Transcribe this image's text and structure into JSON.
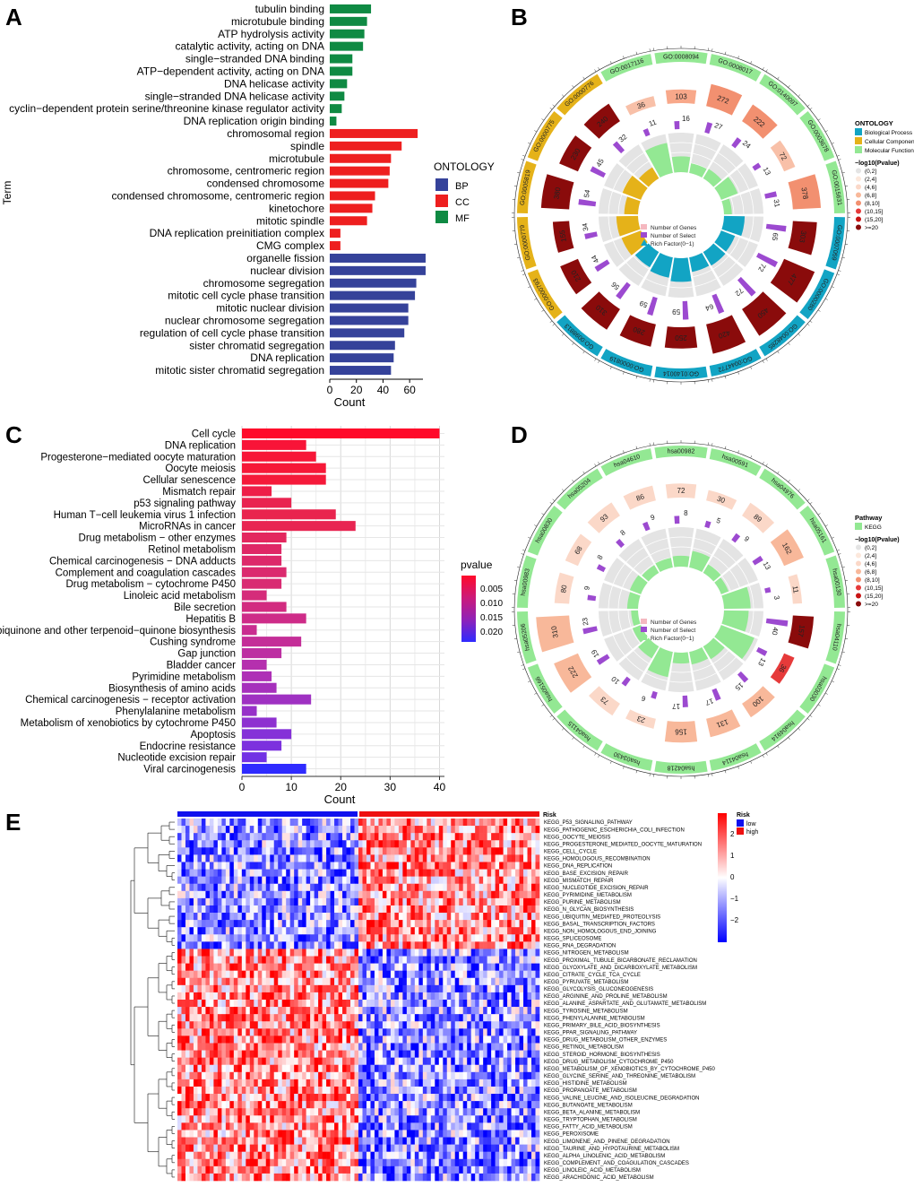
{
  "panels": {
    "a": "A",
    "b": "B",
    "c": "C",
    "d": "D",
    "e": "E"
  },
  "chart_data": [
    {
      "id": "A",
      "type": "bar",
      "orientation": "horizontal",
      "ylabel": "Term",
      "xlabel": "Count",
      "xlim": [
        0,
        70
      ],
      "xticks": [
        0,
        20,
        40,
        60
      ],
      "legend": {
        "title": "ONTOLOGY",
        "placement": "right",
        "items": [
          {
            "name": "BP",
            "color": "#35429a"
          },
          {
            "name": "CC",
            "color": "#ee1f1f"
          },
          {
            "name": "MF",
            "color": "#0f8a43"
          }
        ]
      },
      "categories": [
        "tubulin binding",
        "microtubule binding",
        "ATP hydrolysis activity",
        "catalytic activity, acting on DNA",
        "single−stranded DNA binding",
        "ATP−dependent activity, acting on DNA",
        "DNA helicase activity",
        "single−stranded DNA helicase activity",
        "cyclin−dependent protein serine/threonine kinase regulator activity",
        "DNA replication origin binding",
        "chromosomal region",
        "spindle",
        "microtubule",
        "chromosome, centromeric region",
        "condensed chromosome",
        "condensed chromosome, centromeric region",
        "kinetochore",
        "mitotic spindle",
        "DNA replication preinitiation complex",
        "CMG complex",
        "organelle fission",
        "nuclear division",
        "chromosome segregation",
        "mitotic cell cycle phase transition",
        "mitotic nuclear division",
        "nuclear chromosome segregation",
        "regulation of cell cycle phase transition",
        "sister chromatid segregation",
        "DNA replication",
        "mitotic sister chromatid segregation"
      ],
      "values": [
        31,
        28,
        26,
        25,
        17,
        17,
        13,
        11,
        9,
        5,
        66,
        54,
        46,
        45,
        44,
        34,
        32,
        28,
        8,
        8,
        72,
        72,
        65,
        64,
        59,
        59,
        56,
        49,
        48,
        46
      ],
      "groups": [
        "MF",
        "MF",
        "MF",
        "MF",
        "MF",
        "MF",
        "MF",
        "MF",
        "MF",
        "MF",
        "CC",
        "CC",
        "CC",
        "CC",
        "CC",
        "CC",
        "CC",
        "CC",
        "CC",
        "CC",
        "BP",
        "BP",
        "BP",
        "BP",
        "BP",
        "BP",
        "BP",
        "BP",
        "BP",
        "BP"
      ]
    },
    {
      "id": "C",
      "type": "bar",
      "orientation": "horizontal",
      "xlabel": "Count",
      "xlim": [
        0,
        41
      ],
      "xticks": [
        0,
        10,
        20,
        30,
        40
      ],
      "legend": {
        "title": "pvalue",
        "placement": "right",
        "ticks": [
          "0.005",
          "0.010",
          "0.015",
          "0.020"
        ],
        "gradient": [
          "#ff0a2a",
          "#cc1a7a",
          "#8f22b8",
          "#2f2bff"
        ]
      },
      "categories": [
        "Cell cycle",
        "DNA replication",
        "Progesterone−mediated oocyte maturation",
        "Oocyte meiosis",
        "Cellular senescence",
        "Mismatch repair",
        "p53 signaling pathway",
        "Human T−cell leukemia virus 1 infection",
        "MicroRNAs in cancer",
        "Drug metabolism − other enzymes",
        "Retinol metabolism",
        "Chemical carcinogenesis − DNA adducts",
        "Complement and coagulation cascades",
        "Drug metabolism − cytochrome P450",
        "Linoleic acid metabolism",
        "Bile secretion",
        "Hepatitis B",
        "Ubiquinone and other terpenoid−quinone biosynthesis",
        "Cushing syndrome",
        "Gap junction",
        "Bladder cancer",
        "Pyrimidine metabolism",
        "Biosynthesis of amino acids",
        "Chemical carcinogenesis − receptor activation",
        "Phenylalanine metabolism",
        "Metabolism of xenobiotics by cytochrome P450",
        "Apoptosis",
        "Endocrine resistance",
        "Nucleotide excision repair",
        "Viral carcinogenesis"
      ],
      "values": [
        40,
        13,
        15,
        17,
        17,
        6,
        10,
        19,
        23,
        9,
        8,
        8,
        9,
        8,
        5,
        9,
        13,
        3,
        12,
        8,
        5,
        6,
        7,
        14,
        3,
        7,
        10,
        8,
        5,
        13
      ],
      "colors": [
        "#ff0a2a",
        "#f81438",
        "#f71638",
        "#f61838",
        "#f51a3a",
        "#ee1e48",
        "#e92350",
        "#e9244e",
        "#e82552",
        "#e3275e",
        "#df2866",
        "#dd296a",
        "#db2a6e",
        "#d92b72",
        "#d52c7a",
        "#d22c80",
        "#ce2c88",
        "#c92d90",
        "#c42e98",
        "#bd2fa2",
        "#b52fae",
        "#ae30b6",
        "#a630bc",
        "#9f31c2",
        "#9731c8",
        "#8e31d0",
        "#8531d8",
        "#7c31de",
        "#7232e4",
        "#2f2bff"
      ]
    },
    {
      "id": "B",
      "type": "circular",
      "legend": {
        "title": "ONTOLOGY",
        "items": [
          {
            "name": "Biological Process",
            "color": "#12a4c4"
          },
          {
            "name": "Cellular Component",
            "color": "#e5b219"
          },
          {
            "name": "Molecular Function",
            "color": "#93e893"
          }
        ],
        "scale_title": "−log10(Pvalue)",
        "scale": [
          "(0,2]",
          "(2,4]",
          "(4,6]",
          "(6,8]",
          "(8,10]",
          "(10,15]",
          "(15,20]",
          ">=20"
        ],
        "inner": [
          "Number of Genes",
          "Number of Select",
          "Rich Factor(0−1)"
        ]
      },
      "terms": [
        {
          "id": "GO:0008094",
          "n": 103,
          "sel": 16,
          "ont": "MF",
          "rich": 0.16,
          "p": "#f8a88a"
        },
        {
          "id": "GO:0008017",
          "n": 272,
          "sel": 27,
          "ont": "MF",
          "rich": 0.1,
          "p": "#f29070"
        },
        {
          "id": "GO:0140097",
          "n": 222,
          "sel": 24,
          "ont": "MF",
          "rich": 0.11,
          "p": "#f29070"
        },
        {
          "id": "GO:0003678",
          "n": 72,
          "sel": 13,
          "ont": "MF",
          "rich": 0.18,
          "p": "#f8c0a8"
        },
        {
          "id": "GO:0015631",
          "n": 378,
          "sel": 31,
          "ont": "MF",
          "rich": 0.08,
          "p": "#f29070"
        },
        {
          "id": "GO:0007059",
          "n": 303,
          "sel": 65,
          "ont": "BP",
          "rich": 0.21,
          "p": "#8a0b0b"
        },
        {
          "id": "GO:0000280",
          "n": 477,
          "sel": 72,
          "ont": "BP",
          "rich": 0.15,
          "p": "#8a0b0b"
        },
        {
          "id": "GO:0048285",
          "n": 450,
          "sel": 72,
          "ont": "BP",
          "rich": 0.16,
          "p": "#8a0b0b"
        },
        {
          "id": "GO:0044772",
          "n": 420,
          "sel": 64,
          "ont": "BP",
          "rich": 0.15,
          "p": "#8a0b0b"
        },
        {
          "id": "GO:0140014",
          "n": 250,
          "sel": 59,
          "ont": "BP",
          "rich": 0.24,
          "p": "#8a0b0b"
        },
        {
          "id": "GO:0000819",
          "n": 280,
          "sel": 59,
          "ont": "BP",
          "rich": 0.21,
          "p": "#8a0b0b"
        },
        {
          "id": "GO:0098813",
          "n": 310,
          "sel": 56,
          "ont": "BP",
          "rich": 0.18,
          "p": "#8a0b0b"
        },
        {
          "id": "GO:0000793",
          "n": 210,
          "sel": 44,
          "ont": "CC",
          "rich": 0.21,
          "p": "#8a0b0b"
        },
        {
          "id": "GO:0000779",
          "n": 155,
          "sel": 34,
          "ont": "CC",
          "rich": 0.22,
          "p": "#8a0b0b"
        },
        {
          "id": "GO:0005819",
          "n": 380,
          "sel": 54,
          "ont": "CC",
          "rich": 0.14,
          "p": "#8a0b0b"
        },
        {
          "id": "GO:0000775",
          "n": 230,
          "sel": 45,
          "ont": "CC",
          "rich": 0.2,
          "p": "#8a0b0b"
        },
        {
          "id": "GO:0000776",
          "n": 240,
          "sel": 32,
          "ont": "CC",
          "rich": 0.13,
          "p": "#8a0b0b"
        },
        {
          "id": "GO:0017116",
          "n": 36,
          "sel": 11,
          "ont": "MF",
          "rich": 0.31,
          "p": "#f8c0a8"
        }
      ]
    },
    {
      "id": "D",
      "type": "circular",
      "legend": {
        "title": "Pathway",
        "items": [
          {
            "name": "KEGG",
            "color": "#93e893"
          }
        ],
        "scale_title": "−log10(Pvalue)",
        "scale": [
          "(0,2]",
          "(2,4]",
          "(4,6]",
          "(6,8]",
          "(8,10]",
          "(10,15]",
          "(15,20]",
          ">=20"
        ],
        "inner": [
          "Number of Genes",
          "Number of Select",
          "Rich Factor(0−1)"
        ]
      },
      "terms": [
        {
          "id": "hsa00982",
          "n": 72,
          "sel": 8,
          "rich": 0.11,
          "p": "#fbd8c8"
        },
        {
          "id": "hsa00591",
          "n": 30,
          "sel": 5,
          "rich": 0.17,
          "p": "#fbd8c8"
        },
        {
          "id": "hsa04976",
          "n": 89,
          "sel": 9,
          "rich": 0.1,
          "p": "#fbd8c8"
        },
        {
          "id": "hsa05161",
          "n": 162,
          "sel": 13,
          "rich": 0.08,
          "p": "#f8b89a"
        },
        {
          "id": "hsa00130",
          "n": 11,
          "sel": 3,
          "rich": 0.27,
          "p": "#fbd8c8"
        },
        {
          "id": "hsa04110",
          "n": 157,
          "sel": 40,
          "rich": 0.25,
          "p": "#8a0b0b"
        },
        {
          "id": "hsa03030",
          "n": 36,
          "sel": 13,
          "rich": 0.36,
          "p": "#e63a3a"
        },
        {
          "id": "hsa04914",
          "n": 100,
          "sel": 15,
          "rich": 0.15,
          "p": "#f8b89a"
        },
        {
          "id": "hsa04114",
          "n": 131,
          "sel": 17,
          "rich": 0.13,
          "p": "#f8b89a"
        },
        {
          "id": "hsa04218",
          "n": 156,
          "sel": 17,
          "rich": 0.11,
          "p": "#f8b89a"
        },
        {
          "id": "hsa03430",
          "n": 23,
          "sel": 6,
          "rich": 0.26,
          "p": "#fbd8c8"
        },
        {
          "id": "hsa04115",
          "n": 73,
          "sel": 10,
          "rich": 0.14,
          "p": "#fbd8c8"
        },
        {
          "id": "hsa05166",
          "n": 222,
          "sel": 19,
          "rich": 0.09,
          "p": "#f8b89a"
        },
        {
          "id": "hsa05206",
          "n": 310,
          "sel": 23,
          "rich": 0.07,
          "p": "#f8b89a"
        },
        {
          "id": "hsa00983",
          "n": 80,
          "sel": 9,
          "rich": 0.11,
          "p": "#fbd8c8"
        },
        {
          "id": "hsa00830",
          "n": 68,
          "sel": 8,
          "rich": 0.12,
          "p": "#fbd8c8"
        },
        {
          "id": "hsa05204",
          "n": 93,
          "sel": 8,
          "rich": 0.09,
          "p": "#fbd8c8"
        },
        {
          "id": "hsa04610",
          "n": 86,
          "sel": 9,
          "rich": 0.1,
          "p": "#fbd8c8"
        }
      ]
    },
    {
      "id": "E",
      "type": "heatmap",
      "annotation": {
        "title": "Risk",
        "items": [
          {
            "name": "low",
            "color": "#1010ee"
          },
          {
            "name": "high",
            "color": "#ee1010"
          }
        ]
      },
      "scale": {
        "ticks": [
          "2",
          "1",
          "0",
          "−1",
          "−2"
        ],
        "colors": [
          "#ff0000",
          "#ffffff",
          "#0000ff"
        ]
      },
      "rows_top": [
        "KEGG_P53_SIGNALING_PATHWAY",
        "KEGG_PATHOGENIC_ESCHERICHIA_COLI_INFECTION",
        "KEGG_OOCYTE_MEIOSIS",
        "KEGG_PROGESTERONE_MEDIATED_OOCYTE_MATURATION",
        "KEGG_CELL_CYCLE",
        "KEGG_HOMOLOGOUS_RECOMBINATION",
        "KEGG_DNA_REPLICATION",
        "KEGG_BASE_EXCISION_REPAIR",
        "KEGG_MISMATCH_REPAIR",
        "KEGG_NUCLEOTIDE_EXCISION_REPAIR",
        "KEGG_PYRIMIDINE_METABOLISM",
        "KEGG_PURINE_METABOLISM",
        "KEGG_N_GLYCAN_BIOSYNTHESIS",
        "KEGG_UBIQUITIN_MEDIATED_PROTEOLYSIS",
        "KEGG_BASAL_TRANSCRIPTION_FACTORS",
        "KEGG_NON_HOMOLOGOUS_END_JOINING",
        "KEGG_SPLICEOSOME",
        "KEGG_RNA_DEGRADATION"
      ],
      "rows_bottom": [
        "KEGG_NITROGEN_METABOLISM",
        "KEGG_PROXIMAL_TUBULE_BICARBONATE_RECLAMATION",
        "KEGG_GLYOXYLATE_AND_DICARBOXYLATE_METABOLISM",
        "KEGG_CITRATE_CYCLE_TCA_CYCLE",
        "KEGG_PYRUVATE_METABOLISM",
        "KEGG_GLYCOLYSIS_GLUCONEOGENESIS",
        "KEGG_ARGININE_AND_PROLINE_METABOLISM",
        "KEGG_ALANINE_ASPARTATE_AND_GLUTAMATE_METABOLISM",
        "KEGG_TYROSINE_METABOLISM",
        "KEGG_PHENYLALANINE_METABOLISM",
        "KEGG_PRIMARY_BILE_ACID_BIOSYNTHESIS",
        "KEGG_PPAR_SIGNALING_PATHWAY",
        "KEGG_DRUG_METABOLISM_OTHER_ENZYMES",
        "KEGG_RETINOL_METABOLISM",
        "KEGG_STEROID_HORMONE_BIOSYNTHESIS",
        "KEGG_DRUG_METABOLISM_CYTOCHROME_P450",
        "KEGG_METABOLISM_OF_XENOBIOTICS_BY_CYTOCHROME_P450",
        "KEGG_GLYCINE_SERINE_AND_THREONINE_METABOLISM",
        "KEGG_HISTIDINE_METABOLISM",
        "KEGG_PROPANOATE_METABOLISM",
        "KEGG_VALINE_LEUCINE_AND_ISOLEUCINE_DEGRADATION",
        "KEGG_BUTANOATE_METABOLISM",
        "KEGG_BETA_ALANINE_METABOLISM",
        "KEGG_TRYPTOPHAN_METABOLISM",
        "KEGG_FATTY_ACID_METABOLISM",
        "KEGG_PEROXISOME",
        "KEGG_LIMONENE_AND_PINENE_DEGRADATION",
        "KEGG_TAURINE_AND_HYPOTAURINE_METABOLISM",
        "KEGG_ALPHA_LINOLENIC_ACID_METABOLISM",
        "KEGG_COMPLEMENT_AND_COAGULATION_CASCADES",
        "KEGG_LINOLEIC_ACID_METABOLISM",
        "KEGG_ARACHIDONIC_ACID_METABOLISM"
      ]
    }
  ]
}
